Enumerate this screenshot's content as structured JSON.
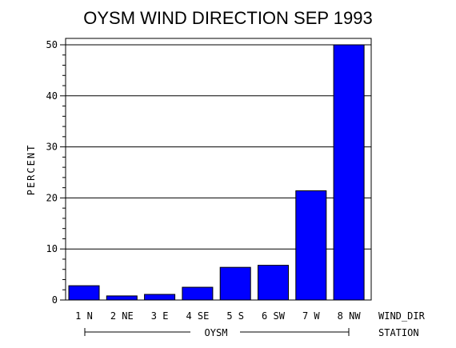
{
  "chart_data": {
    "type": "bar",
    "title": "OYSM WIND DIRECTION SEP 1993",
    "ylabel": "PERCENT",
    "xlabel": "WIND_DIR",
    "group_label": "OYSM",
    "group_axis_label": "STATION",
    "ylim": [
      0,
      50
    ],
    "yticks": [
      0,
      10,
      20,
      30,
      40,
      50
    ],
    "categories": [
      "1 N",
      "2 NE",
      "3 E",
      "4 SE",
      "5 S",
      "6 SW",
      "7 W",
      "8 NW"
    ],
    "values": [
      2.8,
      0.8,
      1.1,
      2.5,
      6.4,
      6.8,
      21.4,
      50.0
    ],
    "grid": true,
    "bar_color": "#0000ff"
  }
}
